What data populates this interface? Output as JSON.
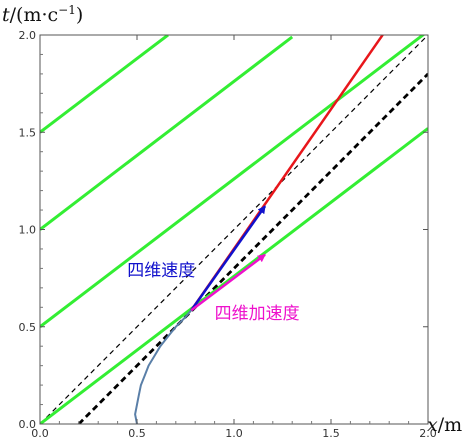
{
  "chart_data": {
    "type": "line",
    "title": "",
    "axes": {
      "x": {
        "label_var": "x",
        "label_unit": "/m",
        "range": [
          0,
          2.0
        ],
        "ticks": [
          0.0,
          0.5,
          1.0,
          1.5,
          2.0
        ],
        "tick_labels": [
          "0.0",
          "0.5",
          "1.0",
          "1.5",
          "2.0"
        ]
      },
      "y": {
        "label_var": "t",
        "label_unit": "/(m·c",
        "label_exp": "−1",
        "label_close": ")",
        "range": [
          0,
          2.0
        ],
        "ticks": [
          0.0,
          0.5,
          1.0,
          1.5,
          2.0
        ],
        "tick_labels": [
          "0.0",
          "0.5",
          "1.0",
          "1.5",
          "2.0"
        ]
      }
    },
    "grid": false,
    "series": [
      {
        "kind": "curve",
        "color": "#5a7fa8",
        "width": 2,
        "points": [
          [
            0.5,
            0.0
          ],
          [
            0.49,
            0.05
          ],
          [
            0.5,
            0.1
          ],
          [
            0.51,
            0.15
          ],
          [
            0.52,
            0.2
          ],
          [
            0.54,
            0.25
          ],
          [
            0.56,
            0.3
          ],
          [
            0.59,
            0.35
          ],
          [
            0.62,
            0.4
          ],
          [
            0.66,
            0.45
          ],
          [
            0.7,
            0.5
          ],
          [
            0.75,
            0.55
          ],
          [
            0.78,
            0.585
          ]
        ]
      },
      {
        "kind": "segment",
        "color": "#e8161b",
        "width": 2.5,
        "points": [
          [
            0.78,
            0.585
          ],
          [
            1.78,
            2.02
          ]
        ]
      },
      {
        "kind": "segment",
        "color": "#000000",
        "width": 1.2,
        "dash": "5,4",
        "points": [
          [
            0.0,
            0.0
          ],
          [
            2.0,
            2.0
          ]
        ]
      },
      {
        "kind": "segment",
        "color": "#000000",
        "width": 2.8,
        "dash": "6,4",
        "points": [
          [
            0.2,
            0.0
          ],
          [
            2.0,
            1.8
          ]
        ]
      },
      {
        "kind": "segment",
        "color": "#33ee33",
        "width": 3,
        "points": [
          [
            0.0,
            0.0
          ],
          [
            2.0,
            1.52
          ]
        ]
      },
      {
        "kind": "segment",
        "color": "#33ee33",
        "width": 3,
        "points": [
          [
            0.0,
            0.5
          ],
          [
            2.0,
            2.02
          ]
        ]
      },
      {
        "kind": "segment",
        "color": "#33ee33",
        "width": 3,
        "points": [
          [
            0.0,
            1.0
          ],
          [
            1.3,
            1.99
          ]
        ]
      },
      {
        "kind": "segment",
        "color": "#33ee33",
        "width": 3,
        "points": [
          [
            0.0,
            1.5
          ],
          [
            0.66,
            2.0
          ]
        ]
      }
    ],
    "arrows": [
      {
        "color": "#1111cc",
        "from": [
          0.78,
          0.585
        ],
        "to": [
          1.16,
          1.12
        ]
      },
      {
        "color": "#ee11cc",
        "from": [
          0.78,
          0.585
        ],
        "to": [
          1.16,
          0.87
        ]
      }
    ],
    "annotations": [
      {
        "text": "四维速度",
        "color": "#1111cc",
        "at": [
          0.45,
          0.76
        ]
      },
      {
        "text": "四维加速度",
        "color": "#ee11cc",
        "at": [
          0.9,
          0.54
        ]
      }
    ]
  }
}
